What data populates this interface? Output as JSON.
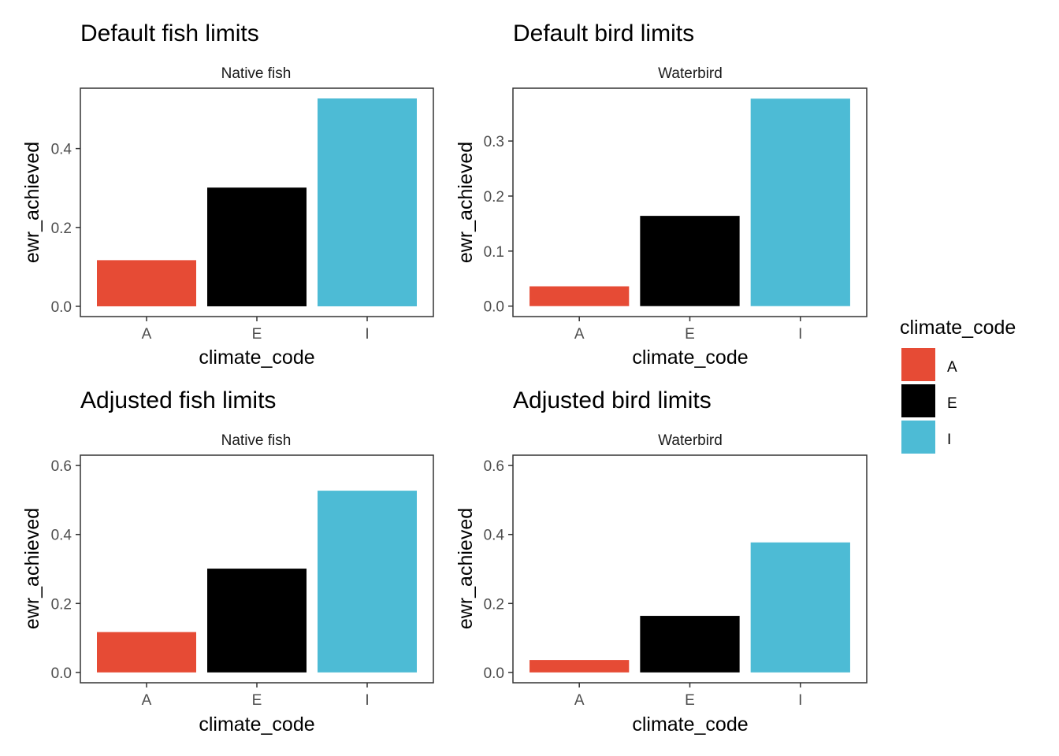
{
  "colors": {
    "A": "#E64B35",
    "E": "#000000",
    "I": "#4DBBD5"
  },
  "legend": {
    "title": "climate_code",
    "entries": [
      "A",
      "E",
      "I"
    ]
  },
  "chart_data": [
    {
      "type": "bar",
      "title": "Default fish limits",
      "strip": "Native fish",
      "xlabel": "climate_code",
      "ylabel": "ewr_achieved",
      "categories": [
        "A",
        "E",
        "I"
      ],
      "values": [
        0.117,
        0.301,
        0.527
      ],
      "ylim": [
        -0.026,
        0.553
      ],
      "yticks": [
        0.0,
        0.2,
        0.4
      ],
      "ytick_labels": [
        "0.0",
        "0.2",
        "0.4"
      ]
    },
    {
      "type": "bar",
      "title": "Default bird limits",
      "strip": "Waterbird",
      "xlabel": "climate_code",
      "ylabel": "ewr_achieved",
      "categories": [
        "A",
        "E",
        "I"
      ],
      "values": [
        0.036,
        0.164,
        0.377
      ],
      "ylim": [
        -0.019,
        0.396
      ],
      "yticks": [
        0.0,
        0.1,
        0.2,
        0.3
      ],
      "ytick_labels": [
        "0.0",
        "0.1",
        "0.2",
        "0.3"
      ]
    },
    {
      "type": "bar",
      "title": "Adjusted fish limits",
      "strip": "Native fish",
      "xlabel": "climate_code",
      "ylabel": "ewr_achieved",
      "categories": [
        "A",
        "E",
        "I"
      ],
      "values": [
        0.117,
        0.301,
        0.527
      ],
      "ylim": [
        -0.03,
        0.63
      ],
      "yticks": [
        0.0,
        0.2,
        0.4,
        0.6
      ],
      "ytick_labels": [
        "0.0",
        "0.2",
        "0.4",
        "0.6"
      ]
    },
    {
      "type": "bar",
      "title": "Adjusted bird limits",
      "strip": "Waterbird",
      "xlabel": "climate_code",
      "ylabel": "ewr_achieved",
      "categories": [
        "A",
        "E",
        "I"
      ],
      "values": [
        0.036,
        0.164,
        0.377
      ],
      "ylim": [
        -0.03,
        0.63
      ],
      "yticks": [
        0.0,
        0.2,
        0.4,
        0.6
      ],
      "ytick_labels": [
        "0.0",
        "0.2",
        "0.4",
        "0.6"
      ]
    }
  ]
}
